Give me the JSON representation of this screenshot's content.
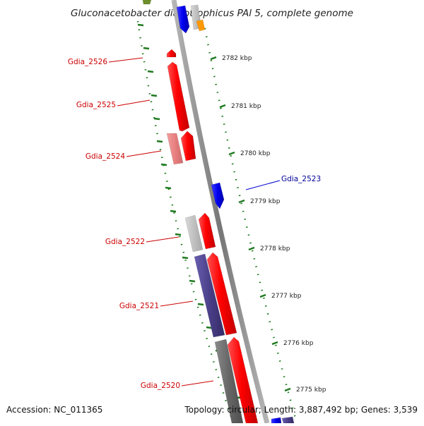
{
  "title": "Gluconacetobacter diazotrophicus PAl 5, complete genome",
  "footer": {
    "accession": "Accession: NC_011365",
    "topology": "Topology: circular",
    "length": "Length: 3,887,492 bp",
    "genes": "Genes: 3,539"
  },
  "colors": {
    "forward_strand": "#ff0000",
    "forward_strand_light": "#e88080",
    "reverse_strand": "#0000ee",
    "backbone": "#8a8a8a",
    "tick": "#1f7a1f",
    "label_forward": "#cc0000",
    "label_reverse": "#000099",
    "purple_block": "#4a3f88",
    "gray_block": "#c0c0c0",
    "dark_gray_block": "#6a6a6a",
    "orange_block": "#ff9900",
    "olive_block": "#6f8f2a"
  },
  "ruler_ticks": [
    {
      "label": "2782 kbp"
    },
    {
      "label": "2781 kbp"
    },
    {
      "label": "2780 kbp"
    },
    {
      "label": "2779 kbp"
    },
    {
      "label": "2778 kbp"
    },
    {
      "label": "2777 kbp"
    },
    {
      "label": "2776 kbp"
    },
    {
      "label": "2775 kbp"
    }
  ],
  "gene_labels": [
    {
      "name": "Gdia_2526",
      "strand": "forward"
    },
    {
      "name": "Gdia_2525",
      "strand": "forward"
    },
    {
      "name": "Gdia_2524",
      "strand": "forward"
    },
    {
      "name": "Gdia_2523",
      "strand": "reverse"
    },
    {
      "name": "Gdia_2522",
      "strand": "forward"
    },
    {
      "name": "Gdia_2521",
      "strand": "forward"
    },
    {
      "name": "Gdia_2520",
      "strand": "forward"
    }
  ]
}
